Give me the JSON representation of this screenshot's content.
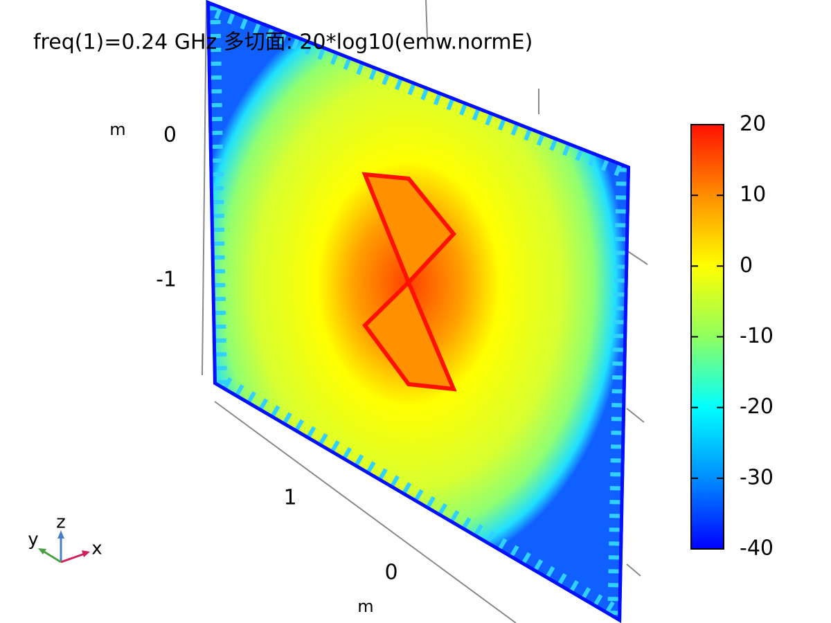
{
  "title": "freq(1)=0.24 GHz  多切面: 20*log10(emw.normE)",
  "colorbar": {
    "range": [
      -40,
      20
    ],
    "ticks": [
      20,
      10,
      0,
      -10,
      -20,
      -30,
      -40
    ]
  },
  "z_axis": {
    "unit": "m",
    "ticks": [
      0,
      -1
    ]
  },
  "y_axis": {
    "unit": "m",
    "ticks": [
      1,
      0
    ]
  },
  "triad": {
    "x": "x",
    "y": "y",
    "z": "z"
  }
}
